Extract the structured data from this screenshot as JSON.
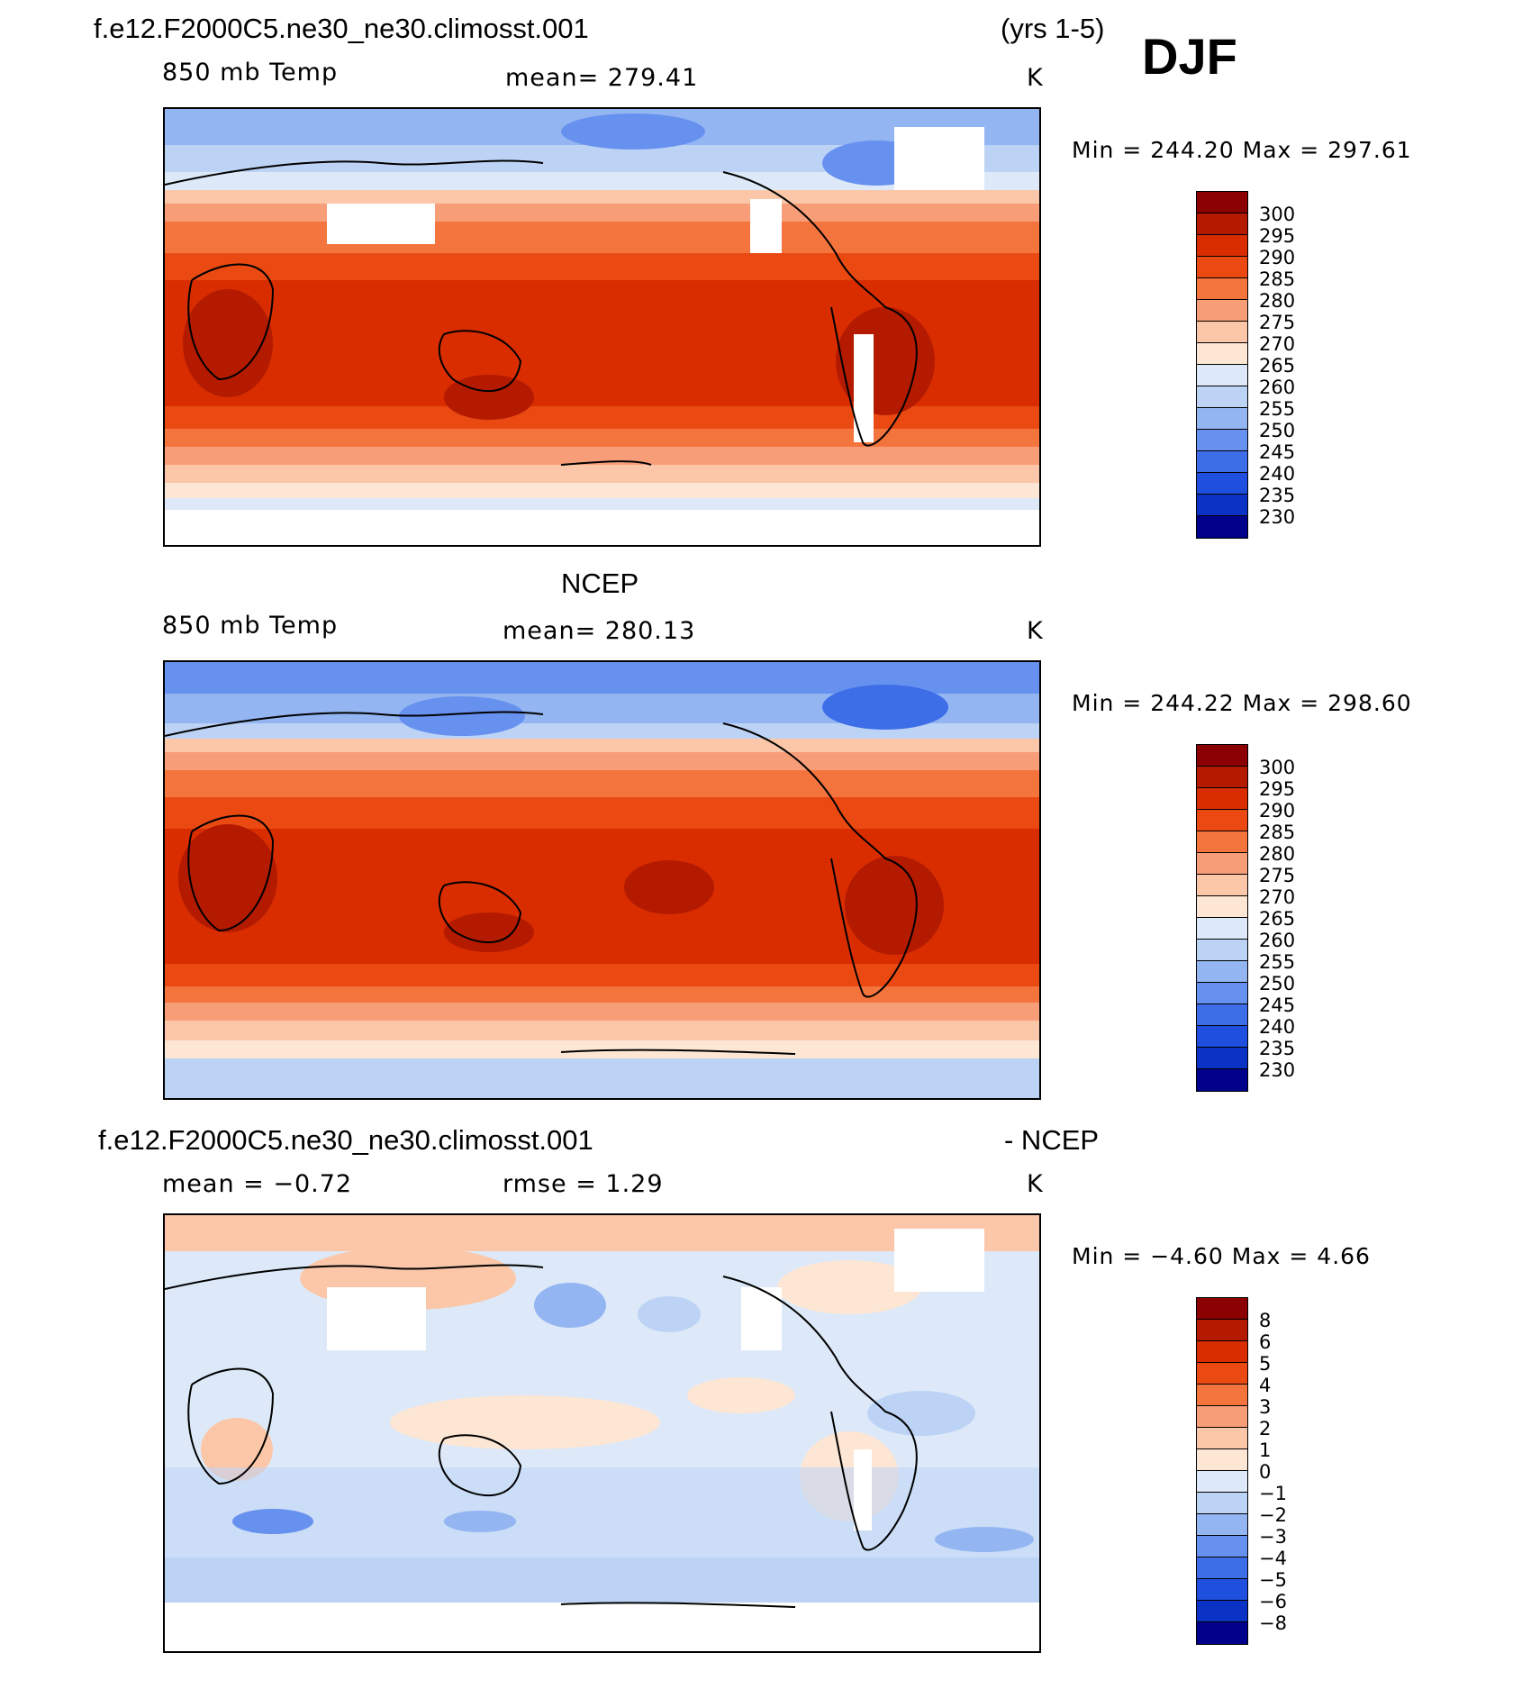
{
  "season": "DJF",
  "panels": [
    {
      "id": "model",
      "header_left": "f.e12.F2000C5.ne30_ne30.climosst.001",
      "header_right": "(yrs 1-5)",
      "subtitle_left": "850 mb Temp",
      "subtitle_center": "mean=  279.41",
      "units": "K",
      "minmax": "Min  =  244.20  Max  =  297.61",
      "colorbar_labels": [
        "300",
        "295",
        "290",
        "285",
        "280",
        "275",
        "270",
        "265",
        "260",
        "255",
        "250",
        "245",
        "240",
        "235",
        "230"
      ],
      "colorbar_colors": [
        "#8b0000",
        "#b31a00",
        "#d92d00",
        "#ea4a12",
        "#f4743e",
        "#f79e79",
        "#fbc7a8",
        "#fde6d4",
        "#dde9f8",
        "#bcd3f5",
        "#93b5f2",
        "#6791ef",
        "#3d6ee8",
        "#1e4fde",
        "#0a32c4",
        "#00008b"
      ]
    },
    {
      "id": "obs",
      "header_center": "NCEP",
      "subtitle_left": "850 mb Temp",
      "subtitle_center": "mean=  280.13",
      "units": "K",
      "minmax": "Min  =  244.22  Max  =  298.60",
      "colorbar_labels": [
        "300",
        "295",
        "290",
        "285",
        "280",
        "275",
        "270",
        "265",
        "260",
        "255",
        "250",
        "245",
        "240",
        "235",
        "230"
      ],
      "colorbar_colors": [
        "#8b0000",
        "#b31a00",
        "#d92d00",
        "#ea4a12",
        "#f4743e",
        "#f79e79",
        "#fbc7a8",
        "#fde6d4",
        "#dde9f8",
        "#bcd3f5",
        "#93b5f2",
        "#6791ef",
        "#3d6ee8",
        "#1e4fde",
        "#0a32c4",
        "#00008b"
      ]
    },
    {
      "id": "diff",
      "header_left": "f.e12.F2000C5.ne30_ne30.climosst.001",
      "header_right": "- NCEP",
      "subtitle_left": "mean  =   −0.72",
      "subtitle_center": "rmse  =     1.29",
      "units": "K",
      "minmax": "Min  =   −4.60  Max  =     4.66",
      "colorbar_labels": [
        "8",
        "6",
        "5",
        "4",
        "3",
        "2",
        "1",
        "0",
        "−1",
        "−2",
        "−3",
        "−4",
        "−5",
        "−6",
        "−8"
      ],
      "colorbar_colors": [
        "#8b0000",
        "#b31a00",
        "#d92d00",
        "#ea4a12",
        "#f4743e",
        "#f79e79",
        "#fbc7a8",
        "#fde6d4",
        "#dde9f8",
        "#bcd3f5",
        "#93b5f2",
        "#6791ef",
        "#3d6ee8",
        "#1e4fde",
        "#0a32c4",
        "#00008b"
      ]
    }
  ]
}
